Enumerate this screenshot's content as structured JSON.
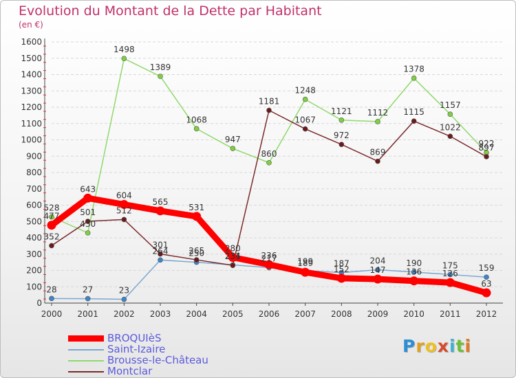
{
  "title": "Evolution du Montant de la Dette par Habitant",
  "subtitle": "(en €)",
  "logo": {
    "text": "Proxiti",
    "letters": [
      {
        "ch": "P",
        "color": "#2a8fd6"
      },
      {
        "ch": "r",
        "color": "#e0a020"
      },
      {
        "ch": "o",
        "color": "#f0c020"
      },
      {
        "ch": "x",
        "color": "#d84a2a"
      },
      {
        "ch": "i",
        "color": "#3fb0d0"
      },
      {
        "ch": "t",
        "color": "#6cbf3a"
      },
      {
        "ch": "i",
        "color": "#e07a20"
      }
    ]
  },
  "chart_data": {
    "type": "line",
    "title": "Evolution du Montant de la Dette par Habitant",
    "subtitle": "(en €)",
    "x": [
      "2000",
      "2001",
      "2002",
      "2003",
      "2004",
      "2005",
      "2006",
      "2007",
      "2008",
      "2009",
      "2010",
      "2011",
      "2012"
    ],
    "ylim": [
      0,
      1600
    ],
    "yticks": [
      0,
      100,
      200,
      300,
      400,
      500,
      600,
      700,
      800,
      900,
      1000,
      1100,
      1200,
      1300,
      1400,
      1500,
      1600
    ],
    "grid": "horizontal",
    "legend_position": "bottom-left",
    "series": [
      {
        "name": "BROQUIèS",
        "color": "#ff0000",
        "values": [
          477,
          643,
          604,
          565,
          531,
          280,
          236,
          189,
          152,
          147,
          136,
          126,
          63
        ],
        "labels": [
          "477",
          "643",
          "604",
          "565",
          "531",
          "280",
          "236",
          "189",
          "152",
          "147",
          "136",
          "126",
          "63"
        ]
      },
      {
        "name": "Saint-Izaire",
        "color": "#7ba7d1",
        "values": [
          28,
          27,
          23,
          264,
          250,
          234,
          217,
          199,
          187,
          204,
          190,
          175,
          159
        ],
        "labels": [
          "28",
          "27",
          "23",
          "264",
          "250",
          "234",
          "217",
          "199",
          "187",
          "204",
          "190",
          "175",
          "159"
        ]
      },
      {
        "name": "Brousse-le-Château",
        "color": "#8fd86a",
        "values": [
          528,
          430,
          1498,
          1389,
          1068,
          947,
          860,
          1248,
          1121,
          1112,
          1378,
          1157,
          922
        ],
        "labels": [
          "528",
          "430",
          "1498",
          "1389",
          "1068",
          "947",
          "860",
          "1248",
          "1121",
          "1112",
          "1378",
          "1157",
          "922"
        ]
      },
      {
        "name": "Montclar",
        "color": "#7a2a2a",
        "values": [
          352,
          501,
          512,
          301,
          265,
          231,
          1181,
          1067,
          972,
          869,
          1115,
          1022,
          897
        ],
        "labels": [
          "352",
          "501",
          "512",
          "301",
          "265",
          "231",
          "1181",
          "1067",
          "972",
          "869",
          "1115",
          "1022",
          "897"
        ]
      }
    ]
  }
}
